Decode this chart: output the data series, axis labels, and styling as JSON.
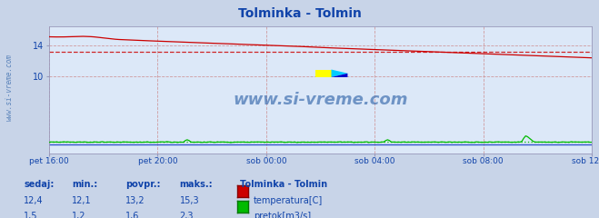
{
  "title": "Tolminka - Tolmin",
  "title_color": "#1144aa",
  "bg_color": "#c8d4e8",
  "plot_bg_color": "#dce8f8",
  "grid_color_red": "#cc8888",
  "grid_color_blue": "#aabbdd",
  "xlabel_color": "#1144aa",
  "watermark": "www.si-vreme.com",
  "x_labels": [
    "pet 16:00",
    "pet 20:00",
    "sob 00:00",
    "sob 04:00",
    "sob 08:00",
    "sob 12:00"
  ],
  "x_ticks_norm": [
    0.0,
    0.2,
    0.4,
    0.6,
    0.8,
    1.0
  ],
  "n_points": 288,
  "temp_color": "#cc0000",
  "temp_hline": 13.2,
  "pretok_color": "#00bb00",
  "pretok_hline_dotted": 1.6,
  "blue_line_val": 1.2,
  "ylim_min": 0,
  "ylim_max": 16.5,
  "yticks": [
    10,
    14
  ],
  "ylabel_color": "#1144aa",
  "legend_title": "Tolminka - Tolmin",
  "footer_color": "#1144aa",
  "watermark_color": "#3366aa",
  "sidebar_text": "www.si-vreme.com",
  "sidebar_color": "#3366aa",
  "footer_labels": [
    "sedaj:",
    "min.:",
    "povpr.:",
    "maks.:"
  ],
  "temp_sedaj": "12,4",
  "temp_min": "12,1",
  "temp_avg": "13,2",
  "temp_max": "15,3",
  "pretok_sedaj": "1,5",
  "pretok_min": "1,2",
  "pretok_avg": "1,6",
  "pretok_max": "2,3"
}
